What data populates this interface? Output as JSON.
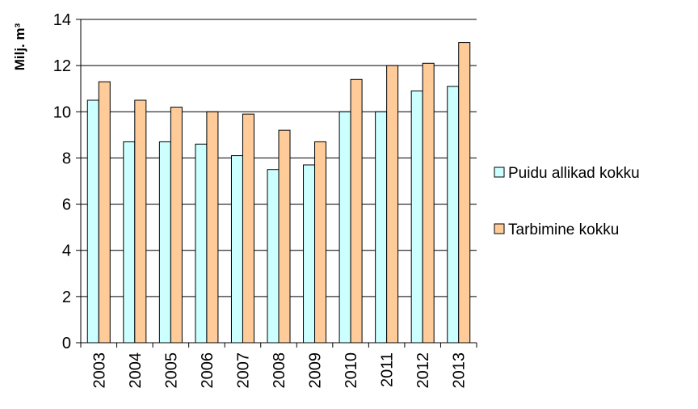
{
  "chart_data": {
    "type": "bar",
    "title": "",
    "xlabel": "",
    "ylabel": "Milj. m³",
    "ylim": [
      0,
      14
    ],
    "yticks": [
      0,
      2,
      4,
      6,
      8,
      10,
      12,
      14
    ],
    "grid": true,
    "legend_position": "right",
    "categories": [
      "2003",
      "2004",
      "2005",
      "2006",
      "2007",
      "2008",
      "2009",
      "2010",
      "2011",
      "2012",
      "2013"
    ],
    "series": [
      {
        "name": "Puidu allikad kokku",
        "color": "#CCFFFF",
        "values": [
          10.5,
          8.7,
          8.7,
          8.6,
          8.1,
          7.5,
          7.7,
          10.0,
          10.0,
          10.9,
          11.1
        ]
      },
      {
        "name": "Tarbimine kokku",
        "color": "#FFCC99",
        "values": [
          11.3,
          10.5,
          10.2,
          10.0,
          9.9,
          9.2,
          8.7,
          11.4,
          12.0,
          12.1,
          13.0
        ]
      }
    ]
  }
}
